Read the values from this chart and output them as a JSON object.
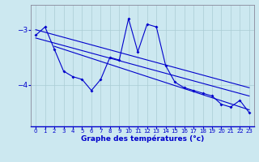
{
  "xlabel": "Graphe des températures (°c)",
  "background_color": "#cce8f0",
  "grid_color": "#aaccd4",
  "line_color": "#0000cc",
  "spine_color": "#888899",
  "xlim": [
    -0.5,
    23.5
  ],
  "ylim": [
    -4.75,
    -2.55
  ],
  "yticks": [
    -3,
    -4
  ],
  "xticks": [
    0,
    1,
    2,
    3,
    4,
    5,
    6,
    7,
    8,
    9,
    10,
    11,
    12,
    13,
    14,
    15,
    16,
    17,
    18,
    19,
    20,
    21,
    22,
    23
  ],
  "series_zigzag_x": [
    0,
    1,
    2,
    3,
    4,
    5,
    6,
    7,
    8,
    9,
    10,
    11,
    12,
    13,
    14,
    15,
    16,
    17,
    18,
    19,
    20,
    21,
    22,
    23
  ],
  "series_zigzag_y": [
    -3.1,
    -2.95,
    -3.35,
    -3.75,
    -3.85,
    -3.9,
    -4.1,
    -3.9,
    -3.5,
    -3.55,
    -2.8,
    -3.4,
    -2.9,
    -2.95,
    -3.65,
    -3.95,
    -4.05,
    -4.1,
    -4.15,
    -4.2,
    -4.35,
    -4.4,
    -4.28,
    -4.5
  ],
  "series_line1_x": [
    0,
    23
  ],
  "series_line1_y": [
    -3.0,
    -4.05
  ],
  "series_line2_x": [
    0,
    23
  ],
  "series_line2_y": [
    -3.15,
    -4.2
  ],
  "series_line3_x": [
    2,
    23
  ],
  "series_line3_y": [
    -3.3,
    -4.45
  ]
}
